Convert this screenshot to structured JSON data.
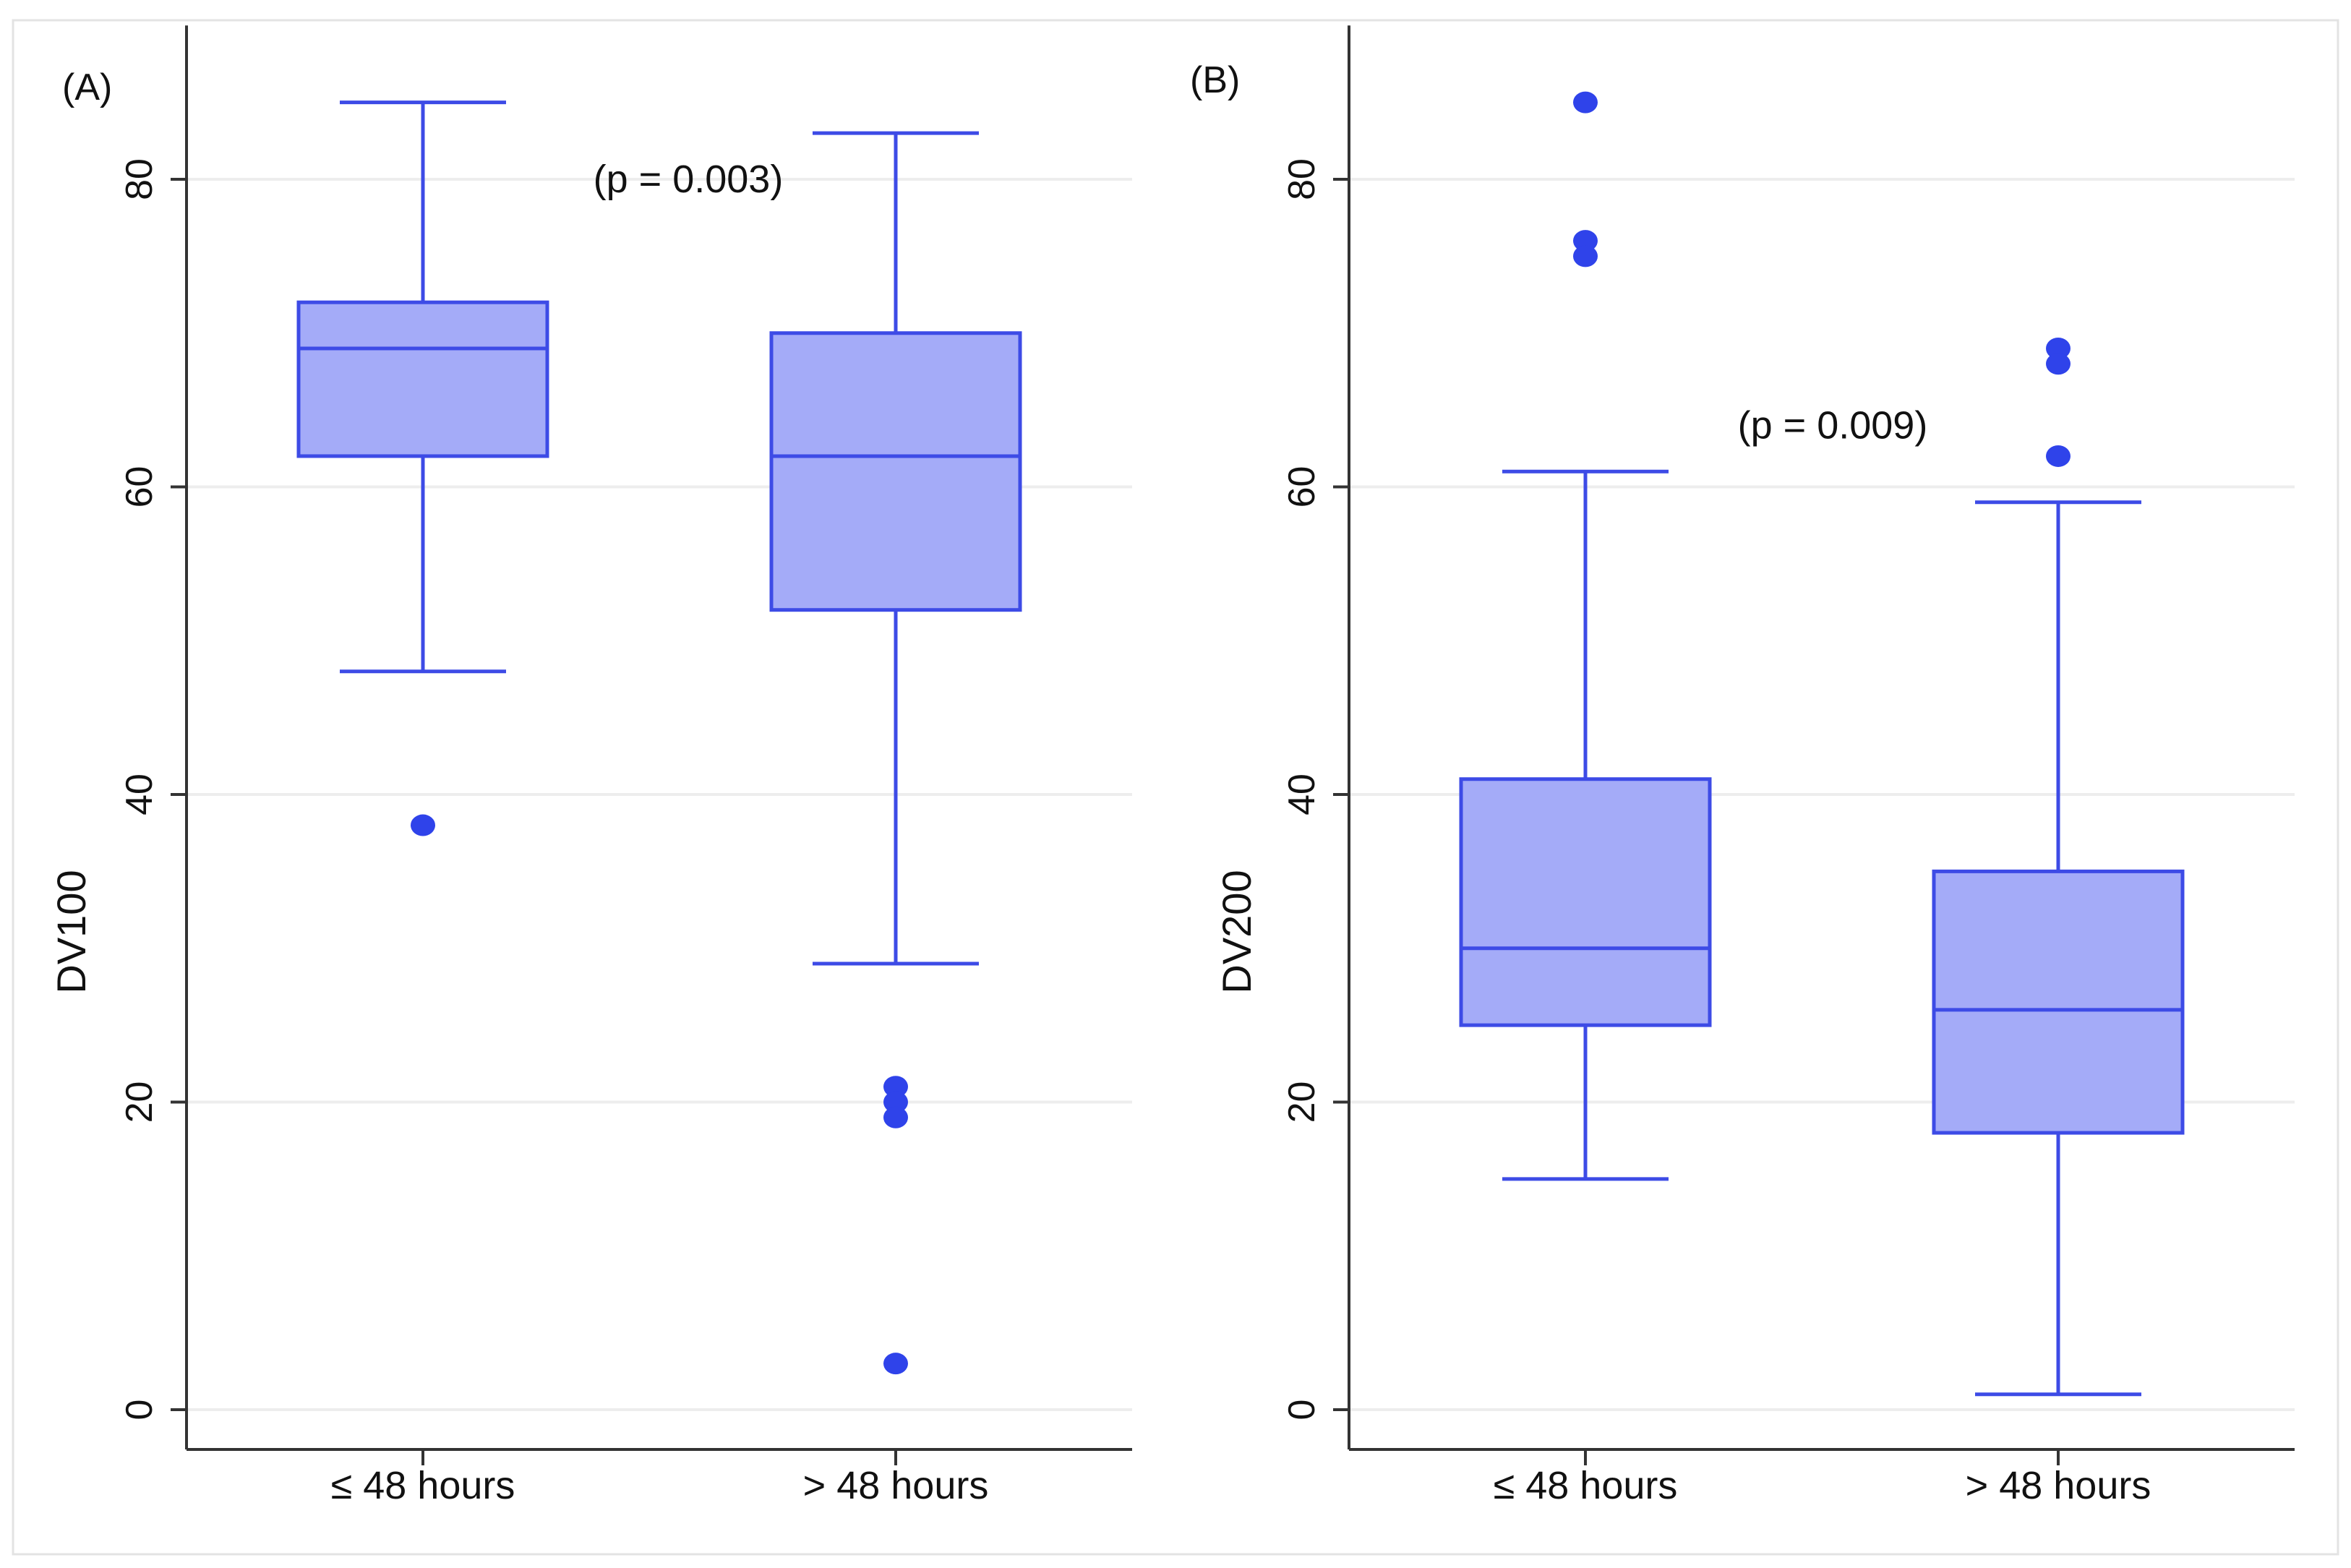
{
  "colors": {
    "box_fill": "#a4abf8",
    "box_stroke": "#3d4be6",
    "outlier": "#2f43ea",
    "grid": "#ededed",
    "axis": "#333333"
  },
  "chart_data": [
    {
      "type": "box",
      "panel_label": "(A)",
      "title": "",
      "xlabel": "",
      "ylabel": "DV100",
      "ylim": [
        -5,
        90
      ],
      "yticks": [
        0,
        20,
        40,
        60,
        80
      ],
      "ytick_labels": [
        "0",
        "20",
        "40",
        "60",
        "80"
      ],
      "grid": true,
      "annotation": {
        "text": "(p = 0.003)",
        "x_between": [
          0,
          1
        ],
        "y": 80
      },
      "categories": [
        "≤ 48 hours",
        "> 48 hours"
      ],
      "boxes": [
        {
          "category": "≤ 48 hours",
          "whisker_low": 48,
          "q1": 62,
          "median": 69,
          "q3": 72,
          "whisker_high": 85,
          "outliers": [
            38
          ]
        },
        {
          "category": "> 48 hours",
          "whisker_low": 29,
          "q1": 52,
          "median": 62,
          "q3": 70,
          "whisker_high": 83,
          "outliers": [
            21,
            20,
            19,
            3
          ]
        }
      ]
    },
    {
      "type": "box",
      "panel_label": "(B)",
      "title": "",
      "xlabel": "",
      "ylabel": "DV200",
      "ylim": [
        -5,
        90
      ],
      "yticks": [
        0,
        20,
        40,
        60,
        80
      ],
      "ytick_labels": [
        "0",
        "20",
        "40",
        "60",
        "80"
      ],
      "grid": true,
      "annotation": {
        "text": "(p = 0.009)",
        "x_between": [
          0,
          1
        ],
        "y": 64
      },
      "categories": [
        "≤ 48 hours",
        "> 48 hours"
      ],
      "boxes": [
        {
          "category": "≤ 48 hours",
          "whisker_low": 15,
          "q1": 25,
          "median": 30,
          "q3": 41,
          "whisker_high": 61,
          "outliers": [
            85,
            76,
            75
          ]
        },
        {
          "category": "> 48 hours",
          "whisker_low": 1,
          "q1": 18,
          "median": 26,
          "q3": 35,
          "whisker_high": 59,
          "outliers": [
            69,
            68,
            62
          ]
        }
      ]
    }
  ]
}
